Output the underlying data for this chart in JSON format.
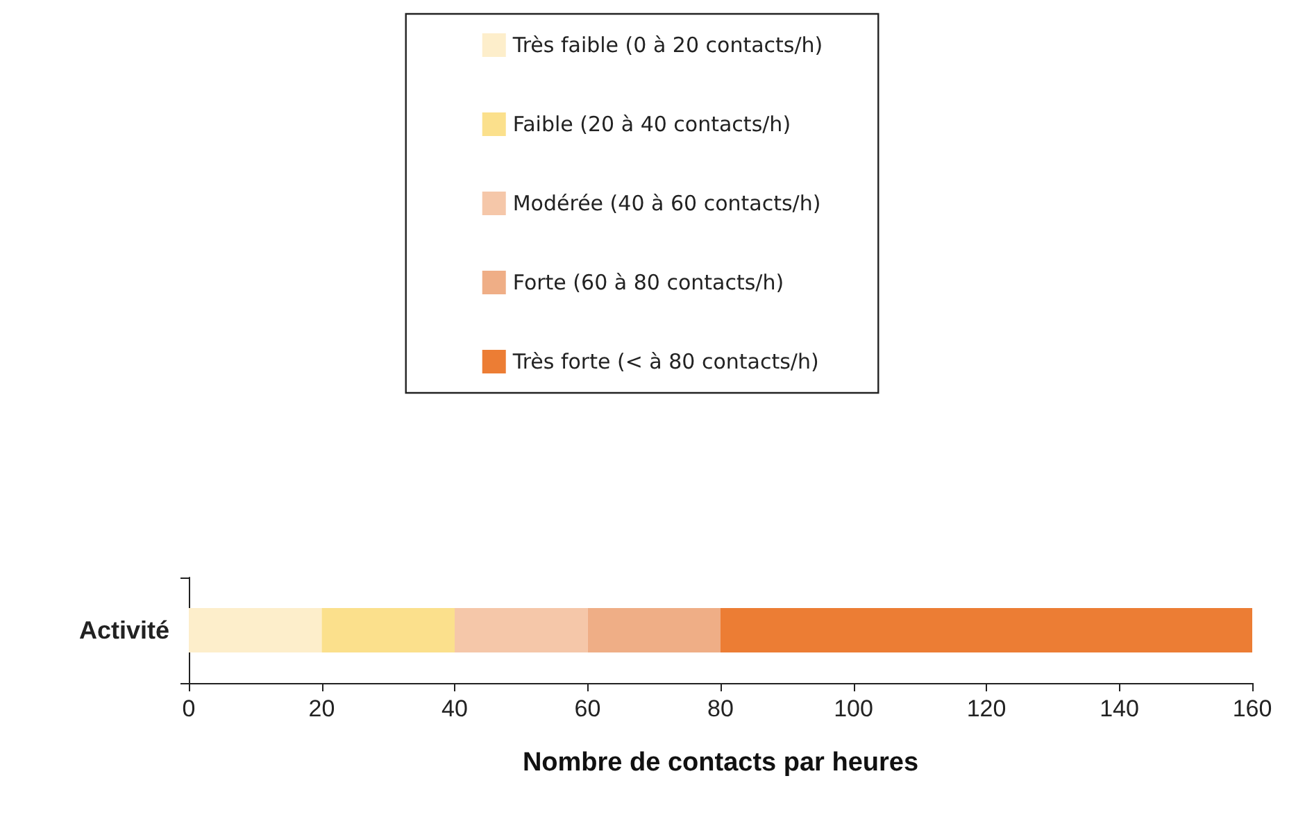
{
  "chart_data": {
    "type": "bar",
    "orientation": "horizontal",
    "stacked": true,
    "categories": [
      "Activité"
    ],
    "xlabel": "Nombre de contacts par heures",
    "series": [
      {
        "name": "Très faible (0 à 20 contacts/h)",
        "color": "#fdeecb",
        "values": [
          20
        ]
      },
      {
        "name": "Faible (20 à 40 contacts/h)",
        "color": "#fbe08c",
        "values": [
          20
        ]
      },
      {
        "name": "Modérée (40 à 60 contacts/h)",
        "color": "#f5c7a9",
        "values": [
          20
        ]
      },
      {
        "name": "Forte (60 à 80 contacts/h)",
        "color": "#efae86",
        "values": [
          20
        ]
      },
      {
        "name": "Très forte (< à 80 contacts/h)",
        "color": "#ec7d34",
        "values": [
          80
        ]
      }
    ],
    "xlim": [
      0,
      160
    ],
    "xticks": [
      0,
      20,
      40,
      60,
      80,
      100,
      120,
      140,
      160
    ],
    "grid": false,
    "legend": "top"
  }
}
